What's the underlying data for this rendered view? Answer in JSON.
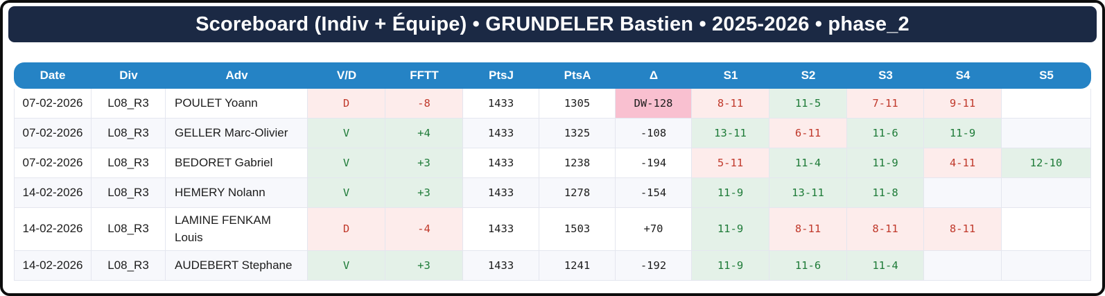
{
  "title": "Scoreboard (Indiv + Équipe) • GRUNDELER Bastien • 2025-2026 • phase_2",
  "colors": {
    "frame_border": "#0d0d0d",
    "title_bg": "#1b2944",
    "table_header_bg": "#2583c5",
    "win_text": "#1e7b38",
    "loss_text": "#c0392b",
    "win_bg": "#e4f1e8",
    "loss_bg": "#fdeceb",
    "delta_alert_bg": "#f9c0d0",
    "row_alt_bg": "#f7f8fc"
  },
  "table": {
    "columns": [
      "Date",
      "Div",
      "Adv",
      "V/D",
      "FFTT",
      "PtsJ",
      "PtsA",
      "Δ",
      "S1",
      "S2",
      "S3",
      "S4",
      "S5"
    ],
    "column_keys": [
      "date",
      "div",
      "adv",
      "vd",
      "fftt",
      "ptsj",
      "ptsa",
      "delta",
      "s1",
      "s2",
      "s3",
      "s4",
      "s5"
    ],
    "rows": [
      {
        "date": "07-02-2026",
        "div": "L08_R3",
        "adv": "POULET Yoann",
        "vd": "D",
        "result": "loss",
        "fftt": "-8",
        "ptsj": "1433",
        "ptsa": "1305",
        "delta": "DW-128",
        "delta_alert": true,
        "sets": [
          {
            "score": "8-11",
            "outcome": "loss"
          },
          {
            "score": "11-5",
            "outcome": "win"
          },
          {
            "score": "7-11",
            "outcome": "loss"
          },
          {
            "score": "9-11",
            "outcome": "loss"
          },
          {
            "score": "",
            "outcome": ""
          }
        ]
      },
      {
        "date": "07-02-2026",
        "div": "L08_R3",
        "adv": "GELLER Marc-Olivier",
        "vd": "V",
        "result": "win",
        "fftt": "+4",
        "ptsj": "1433",
        "ptsa": "1325",
        "delta": "-108",
        "delta_alert": false,
        "sets": [
          {
            "score": "13-11",
            "outcome": "win"
          },
          {
            "score": "6-11",
            "outcome": "loss"
          },
          {
            "score": "11-6",
            "outcome": "win"
          },
          {
            "score": "11-9",
            "outcome": "win"
          },
          {
            "score": "",
            "outcome": ""
          }
        ]
      },
      {
        "date": "07-02-2026",
        "div": "L08_R3",
        "adv": "BEDORET Gabriel",
        "vd": "V",
        "result": "win",
        "fftt": "+3",
        "ptsj": "1433",
        "ptsa": "1238",
        "delta": "-194",
        "delta_alert": false,
        "sets": [
          {
            "score": "5-11",
            "outcome": "loss"
          },
          {
            "score": "11-4",
            "outcome": "win"
          },
          {
            "score": "11-9",
            "outcome": "win"
          },
          {
            "score": "4-11",
            "outcome": "loss"
          },
          {
            "score": "12-10",
            "outcome": "win"
          }
        ]
      },
      {
        "date": "14-02-2026",
        "div": "L08_R3",
        "adv": "HEMERY Nolann",
        "vd": "V",
        "result": "win",
        "fftt": "+3",
        "ptsj": "1433",
        "ptsa": "1278",
        "delta": "-154",
        "delta_alert": false,
        "sets": [
          {
            "score": "11-9",
            "outcome": "win"
          },
          {
            "score": "13-11",
            "outcome": "win"
          },
          {
            "score": "11-8",
            "outcome": "win"
          },
          {
            "score": "",
            "outcome": ""
          },
          {
            "score": "",
            "outcome": ""
          }
        ]
      },
      {
        "date": "14-02-2026",
        "div": "L08_R3",
        "adv": "LAMINE FENKAM Louis",
        "vd": "D",
        "result": "loss",
        "fftt": "-4",
        "ptsj": "1433",
        "ptsa": "1503",
        "delta": "+70",
        "delta_alert": false,
        "sets": [
          {
            "score": "11-9",
            "outcome": "win"
          },
          {
            "score": "8-11",
            "outcome": "loss"
          },
          {
            "score": "8-11",
            "outcome": "loss"
          },
          {
            "score": "8-11",
            "outcome": "loss"
          },
          {
            "score": "",
            "outcome": ""
          }
        ]
      },
      {
        "date": "14-02-2026",
        "div": "L08_R3",
        "adv": "AUDEBERT Stephane",
        "vd": "V",
        "result": "win",
        "fftt": "+3",
        "ptsj": "1433",
        "ptsa": "1241",
        "delta": "-192",
        "delta_alert": false,
        "sets": [
          {
            "score": "11-9",
            "outcome": "win"
          },
          {
            "score": "11-6",
            "outcome": "win"
          },
          {
            "score": "11-4",
            "outcome": "win"
          },
          {
            "score": "",
            "outcome": ""
          },
          {
            "score": "",
            "outcome": ""
          }
        ]
      }
    ]
  }
}
